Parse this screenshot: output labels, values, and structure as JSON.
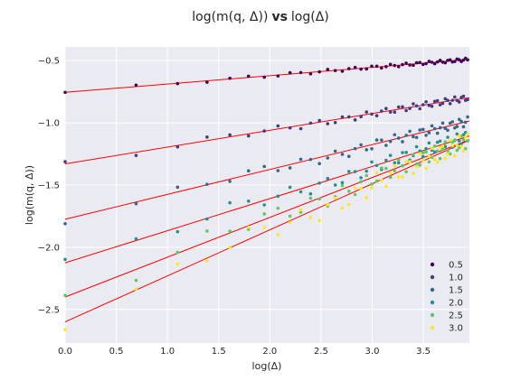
{
  "chart_data": {
    "type": "scatter",
    "title_math": "log(m(q, Δ))",
    "title_vs": "vs",
    "title_tail": "log(Δ)",
    "xlabel": "log(Δ)",
    "ylabel": "log(m(q, Δ))",
    "xlim": [
      0,
      3.95
    ],
    "ylim": [
      -2.77,
      -0.39
    ],
    "xticks": [
      0.0,
      0.5,
      1.0,
      1.5,
      2.0,
      2.5,
      3.0,
      3.5
    ],
    "xtick_labels": [
      "0.0",
      "0.5",
      "1.0",
      "1.5",
      "2.0",
      "2.5",
      "3.0",
      "3.5"
    ],
    "yticks": [
      -2.5,
      -2.0,
      -1.5,
      -1.0,
      -0.5
    ],
    "ytick_labels": [
      "−2.5",
      "−2.0",
      "−1.5",
      "−1.0",
      "−0.5"
    ],
    "grid": true,
    "legend_position": "lower-right",
    "fit_color": "#ff0000",
    "series": [
      {
        "name": "0.5",
        "color": "#440154",
        "intercept": -0.755,
        "slope": 0.067
      },
      {
        "name": "1.0",
        "color": "#443983",
        "intercept": -1.33,
        "slope": 0.135
      },
      {
        "name": "1.5",
        "color": "#31688e",
        "intercept": -1.775,
        "slope": 0.2
      },
      {
        "name": "2.0",
        "color": "#21918c",
        "intercept": -2.125,
        "slope": 0.258
      },
      {
        "name": "2.5",
        "color": "#5ec962",
        "intercept": -2.4,
        "slope": 0.32
      },
      {
        "name": "3.0",
        "color": "#fde725",
        "intercept": -2.6,
        "slope": 0.37
      }
    ]
  }
}
